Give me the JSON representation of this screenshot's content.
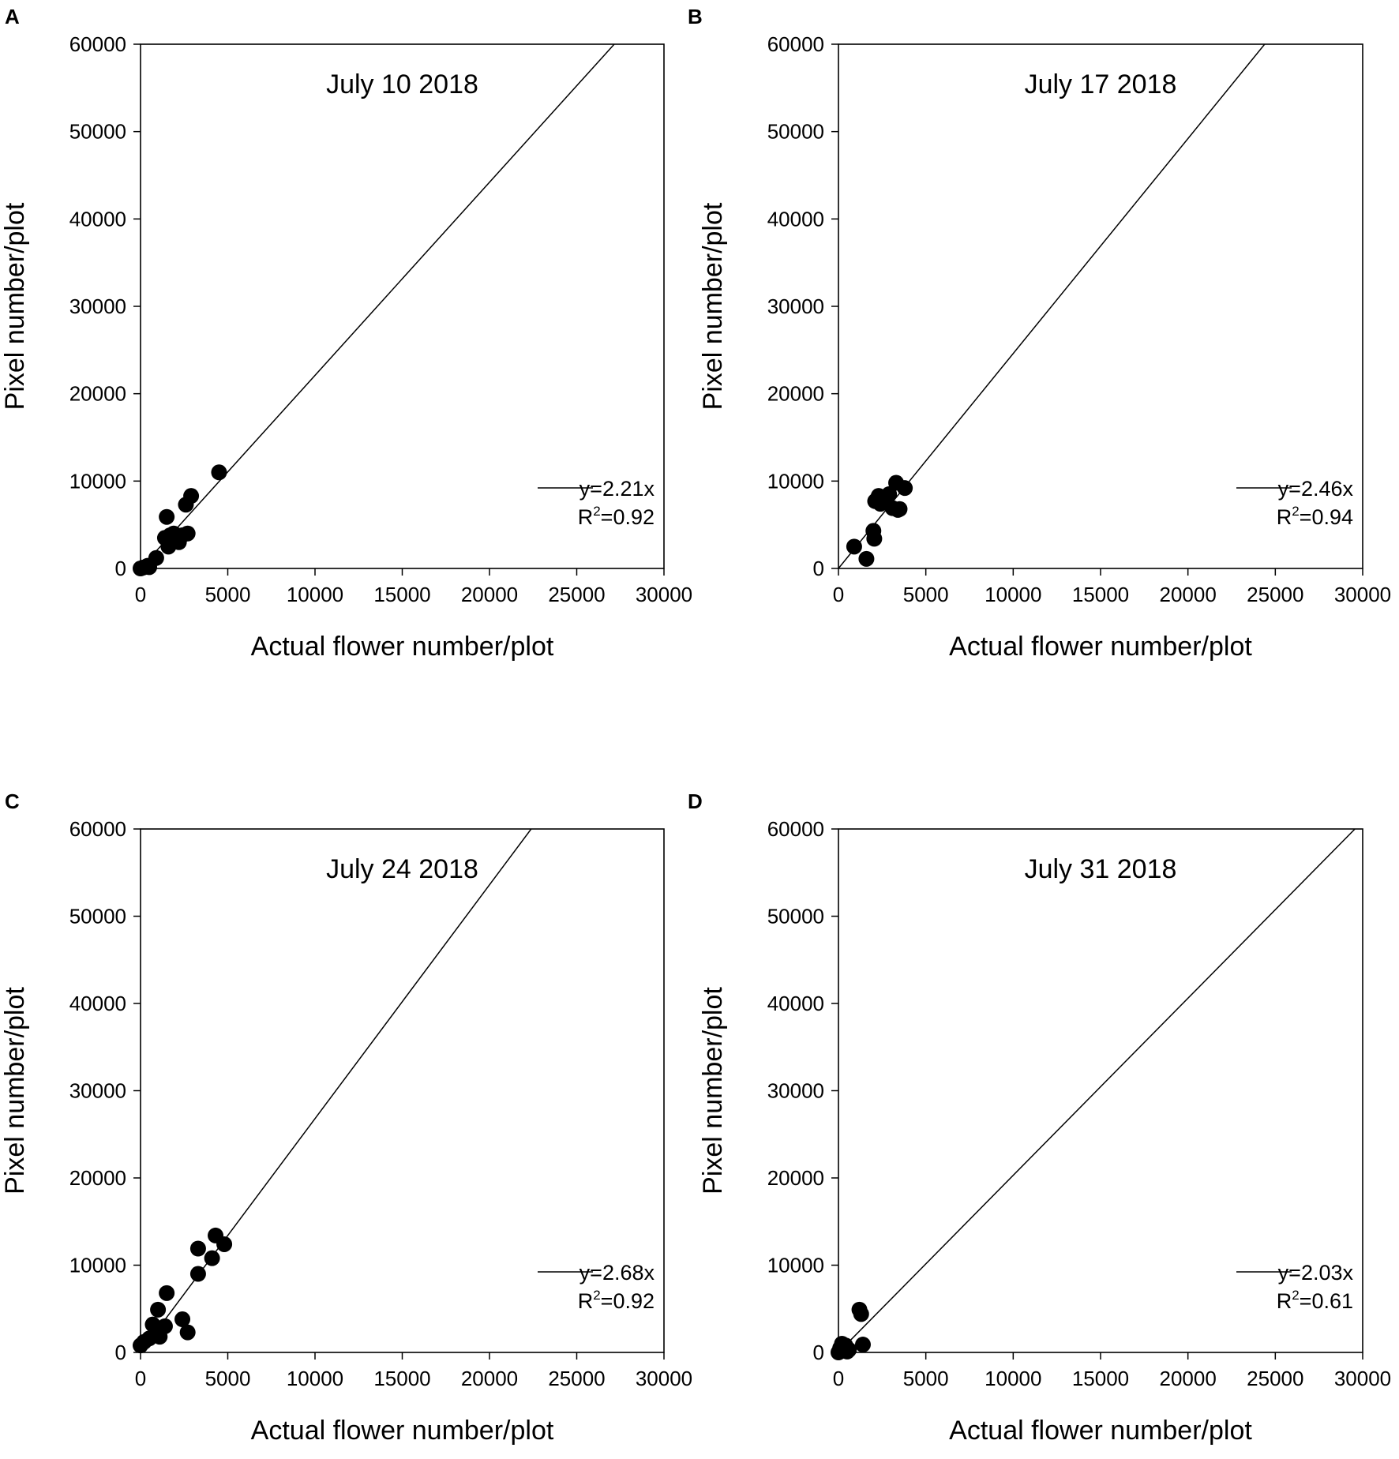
{
  "chart_data": [
    {
      "panel": "A",
      "type": "scatter",
      "title": "July 10 2018",
      "xlabel": "Actual flower number/plot",
      "ylabel": "Pixel number/plot",
      "xlim": [
        0,
        30000
      ],
      "ylim": [
        0,
        60000
      ],
      "xticks": [
        "0",
        "5000",
        "10000",
        "15000",
        "20000",
        "25000",
        "30000"
      ],
      "yticks": [
        "0",
        "10000",
        "20000",
        "30000",
        "40000",
        "50000",
        "60000"
      ],
      "fit_slope": 2.21,
      "legend": {
        "equation": "y=2.21x",
        "r2_prefix": "R",
        "r2_sup": "2",
        "r2_value": "=0.92",
        "position": "lower-right"
      },
      "points": [
        [
          0,
          0
        ],
        [
          150,
          100
        ],
        [
          400,
          300
        ],
        [
          500,
          150
        ],
        [
          900,
          1200
        ],
        [
          1400,
          3500
        ],
        [
          1500,
          5900
        ],
        [
          1600,
          2500
        ],
        [
          1700,
          3800
        ],
        [
          1800,
          3000
        ],
        [
          1900,
          4000
        ],
        [
          2000,
          3500
        ],
        [
          2200,
          3000
        ],
        [
          2400,
          3800
        ],
        [
          2600,
          7300
        ],
        [
          2700,
          4000
        ],
        [
          2900,
          8300
        ],
        [
          4500,
          11000
        ]
      ]
    },
    {
      "panel": "B",
      "type": "scatter",
      "title": "July 17 2018",
      "xlabel": "Actual flower number/plot",
      "ylabel": "Pixel number/plot",
      "xlim": [
        0,
        30000
      ],
      "ylim": [
        0,
        60000
      ],
      "xticks": [
        "0",
        "5000",
        "10000",
        "15000",
        "20000",
        "25000",
        "30000"
      ],
      "yticks": [
        "0",
        "10000",
        "20000",
        "30000",
        "40000",
        "50000",
        "60000"
      ],
      "fit_slope": 2.46,
      "legend": {
        "equation": "y=2.46x",
        "r2_prefix": "R",
        "r2_sup": "2",
        "r2_value": "=0.94",
        "position": "lower-right"
      },
      "points": [
        [
          900,
          2500
        ],
        [
          1600,
          1100
        ],
        [
          2000,
          4300
        ],
        [
          2050,
          3400
        ],
        [
          2100,
          7700
        ],
        [
          2300,
          8300
        ],
        [
          2400,
          7400
        ],
        [
          2600,
          7600
        ],
        [
          2900,
          8500
        ],
        [
          3100,
          6900
        ],
        [
          3300,
          9800
        ],
        [
          3400,
          6700
        ],
        [
          3500,
          6800
        ],
        [
          3800,
          9200
        ]
      ]
    },
    {
      "panel": "C",
      "type": "scatter",
      "title": "July 24 2018",
      "xlabel": "Actual flower number/plot",
      "ylabel": "Pixel number/plot",
      "xlim": [
        0,
        30000
      ],
      "ylim": [
        0,
        60000
      ],
      "xticks": [
        "0",
        "5000",
        "10000",
        "15000",
        "20000",
        "25000",
        "30000"
      ],
      "yticks": [
        "0",
        "10000",
        "20000",
        "30000",
        "40000",
        "50000",
        "60000"
      ],
      "fit_slope": 2.68,
      "legend": {
        "equation": "y=2.68x",
        "r2_prefix": "R",
        "r2_sup": "2",
        "r2_value": "=0.92",
        "position": "lower-right"
      },
      "points": [
        [
          0,
          800
        ],
        [
          200,
          1200
        ],
        [
          500,
          1600
        ],
        [
          700,
          3200
        ],
        [
          1000,
          4900
        ],
        [
          1100,
          1800
        ],
        [
          1400,
          3000
        ],
        [
          1500,
          6800
        ],
        [
          2400,
          3800
        ],
        [
          2700,
          2300
        ],
        [
          3300,
          9000
        ],
        [
          3300,
          11900
        ],
        [
          4100,
          10800
        ],
        [
          4300,
          13400
        ],
        [
          4800,
          12400
        ]
      ]
    },
    {
      "panel": "D",
      "type": "scatter",
      "title": "July 31 2018",
      "xlabel": "Actual flower number/plot",
      "ylabel": "Pixel number/plot",
      "xlim": [
        0,
        30000
      ],
      "ylim": [
        0,
        60000
      ],
      "xticks": [
        "0",
        "5000",
        "10000",
        "15000",
        "20000",
        "25000",
        "30000"
      ],
      "yticks": [
        "0",
        "10000",
        "20000",
        "30000",
        "40000",
        "50000",
        "60000"
      ],
      "fit_slope": 2.03,
      "legend": {
        "equation": "y=2.03x",
        "r2_prefix": "R",
        "r2_sup": "2",
        "r2_value": "=0.61",
        "position": "lower-right"
      },
      "points": [
        [
          0,
          0
        ],
        [
          100,
          500
        ],
        [
          200,
          1000
        ],
        [
          300,
          200
        ],
        [
          400,
          800
        ],
        [
          500,
          100
        ],
        [
          600,
          300
        ],
        [
          1200,
          4900
        ],
        [
          1300,
          4400
        ],
        [
          1400,
          900
        ]
      ]
    }
  ]
}
